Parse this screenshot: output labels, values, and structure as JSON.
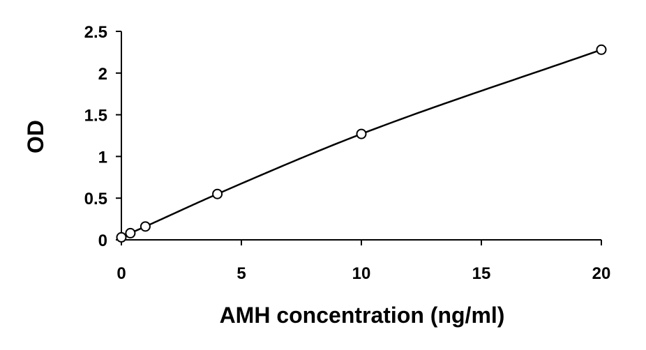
{
  "chart_data": {
    "type": "scatter",
    "title": "",
    "xlabel": "AMH concentration (ng/ml)",
    "ylabel": "OD",
    "xlim": [
      0,
      20
    ],
    "ylim": [
      0,
      2.5
    ],
    "x_ticks": [
      0,
      5,
      10,
      15,
      20
    ],
    "x_tick_labels": [
      "0",
      "5",
      "10",
      "15",
      "20"
    ],
    "y_ticks": [
      0,
      0.5,
      1,
      1.5,
      2,
      2.5
    ],
    "y_tick_labels": [
      "0",
      "0.5",
      "1",
      "1.5",
      "2",
      "2.5"
    ],
    "grid": false,
    "legend": "none",
    "series": [
      {
        "marker": "open-circle",
        "fit": "smooth-curve",
        "x": [
          0,
          0.375,
          1,
          4,
          10,
          20
        ],
        "y": [
          0.03,
          0.08,
          0.16,
          0.55,
          1.27,
          2.28
        ]
      }
    ],
    "colors": {
      "line": "#000000",
      "marker_edge": "#000000",
      "marker_fill": "#ffffff",
      "axis": "#000000"
    }
  }
}
